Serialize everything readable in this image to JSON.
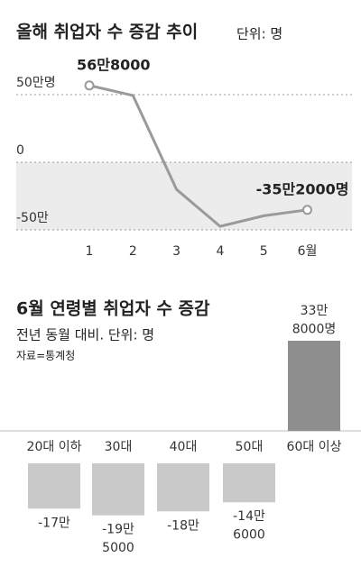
{
  "chart_data": [
    {
      "type": "line",
      "title": "올해 취업자 수 증감 추이",
      "unit": "단위: 명",
      "categories": [
        "1",
        "2",
        "3",
        "4",
        "5",
        "6월"
      ],
      "values": [
        568000,
        494000,
        -201000,
        -474000,
        -396000,
        -352000
      ],
      "value_labels": [
        "56만8000",
        null,
        null,
        null,
        null,
        "-35만2000명"
      ],
      "color": "#9a9a9a",
      "ylim": [
        -520000,
        700000
      ],
      "yticks": [
        {
          "value": 500000,
          "label": "50만명"
        },
        0,
        {
          "value": -500000,
          "label": "-50만"
        }
      ],
      "grid": true
    },
    {
      "type": "bar",
      "title": "6월 연령별 취업자 수 증감",
      "subtitle": "전년 동월 대비. 단위: 명",
      "source": "자료=통계청",
      "categories": [
        "20대 이하",
        "30대",
        "40대",
        "50대",
        "60대 이상"
      ],
      "values": [
        -170000,
        -195000,
        -180000,
        -146000,
        338000
      ],
      "value_labels": [
        "-17만",
        "-19만\n5000",
        "-18만",
        "-14만\n6000",
        "33만\n8000명"
      ],
      "colors": [
        "#c9c9c9",
        "#c9c9c9",
        "#c9c9c9",
        "#c9c9c9",
        "#8e8e8e"
      ]
    }
  ]
}
